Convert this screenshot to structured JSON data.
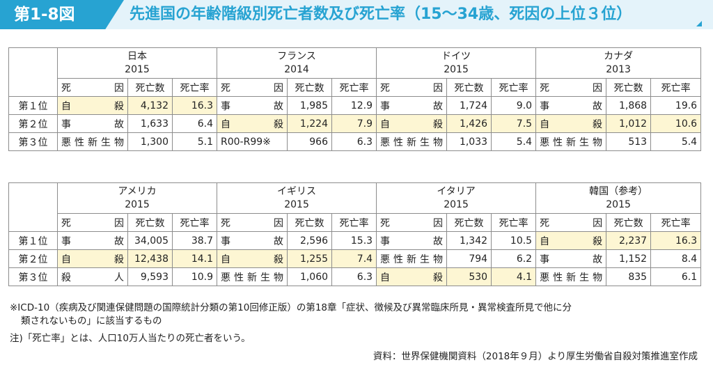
{
  "header": {
    "figure_number": "第1-8図",
    "title": "先進国の年齢階級別死亡者数及び死亡率（15～34歳、死因の上位３位）"
  },
  "column_labels": {
    "cause": "死　因",
    "deaths": "死亡数",
    "rate": "死亡率"
  },
  "tables": [
    {
      "countries": [
        {
          "name": "日本",
          "year": "2015"
        },
        {
          "name": "フランス",
          "year": "2014"
        },
        {
          "name": "ドイツ",
          "year": "2015"
        },
        {
          "name": "カナダ",
          "year": "2013"
        }
      ],
      "rows": [
        {
          "rank": "第１位",
          "cells": [
            {
              "cause": "自殺",
              "deaths": "4,132",
              "rate": "16.3"
            },
            {
              "cause": "事故",
              "deaths": "1,985",
              "rate": "12.9"
            },
            {
              "cause": "事故",
              "deaths": "1,724",
              "rate": "9.0"
            },
            {
              "cause": "事故",
              "deaths": "1,868",
              "rate": "19.6"
            }
          ]
        },
        {
          "rank": "第２位",
          "cells": [
            {
              "cause": "事故",
              "deaths": "1,633",
              "rate": "6.4"
            },
            {
              "cause": "自殺",
              "deaths": "1,224",
              "rate": "7.9"
            },
            {
              "cause": "自殺",
              "deaths": "1,426",
              "rate": "7.5"
            },
            {
              "cause": "自殺",
              "deaths": "1,012",
              "rate": "10.6"
            }
          ]
        },
        {
          "rank": "第３位",
          "cells": [
            {
              "cause": "悪性新生物",
              "deaths": "1,300",
              "rate": "5.1"
            },
            {
              "cause": "R00-R99※",
              "deaths": "966",
              "rate": "6.3"
            },
            {
              "cause": "悪性新生物",
              "deaths": "1,033",
              "rate": "5.4"
            },
            {
              "cause": "悪性新生物",
              "deaths": "513",
              "rate": "5.4"
            }
          ]
        }
      ]
    },
    {
      "countries": [
        {
          "name": "アメリカ",
          "year": "2015"
        },
        {
          "name": "イギリス",
          "year": "2015"
        },
        {
          "name": "イタリア",
          "year": "2015"
        },
        {
          "name": "韓国（参考）",
          "year": "2015"
        }
      ],
      "rows": [
        {
          "rank": "第１位",
          "cells": [
            {
              "cause": "事故",
              "deaths": "34,005",
              "rate": "38.7"
            },
            {
              "cause": "事故",
              "deaths": "2,596",
              "rate": "15.3"
            },
            {
              "cause": "事故",
              "deaths": "1,342",
              "rate": "10.5"
            },
            {
              "cause": "自殺",
              "deaths": "2,237",
              "rate": "16.3"
            }
          ]
        },
        {
          "rank": "第２位",
          "cells": [
            {
              "cause": "自殺",
              "deaths": "12,438",
              "rate": "14.1"
            },
            {
              "cause": "自殺",
              "deaths": "1,255",
              "rate": "7.4"
            },
            {
              "cause": "悪性新生物",
              "deaths": "794",
              "rate": "6.2"
            },
            {
              "cause": "事故",
              "deaths": "1,152",
              "rate": "8.4"
            }
          ]
        },
        {
          "rank": "第３位",
          "cells": [
            {
              "cause": "殺人",
              "deaths": "9,593",
              "rate": "10.9"
            },
            {
              "cause": "悪性新生物",
              "deaths": "1,060",
              "rate": "6.3"
            },
            {
              "cause": "自殺",
              "deaths": "530",
              "rate": "4.1"
            },
            {
              "cause": "悪性新生物",
              "deaths": "835",
              "rate": "6.1"
            }
          ]
        }
      ]
    }
  ],
  "highlight_cause": "自殺",
  "highlight_color": "#fdf6d3",
  "accent_color": "#27a3d2",
  "notes": {
    "icd_line1": "※ICD-10（疾病及び関連保健問題の国際統計分類の第10回修正版）の第18章「症状、徴候及び異常臨床所見・異常検査所見で他に分",
    "icd_line2": "類されないもの」に該当するもの",
    "rate_note": "注)「死亡率」とは、人口10万人当たりの死亡者をいう。",
    "source": "資料：世界保健機関資料（2018年９月）より厚生労働省自殺対策推進室作成"
  }
}
